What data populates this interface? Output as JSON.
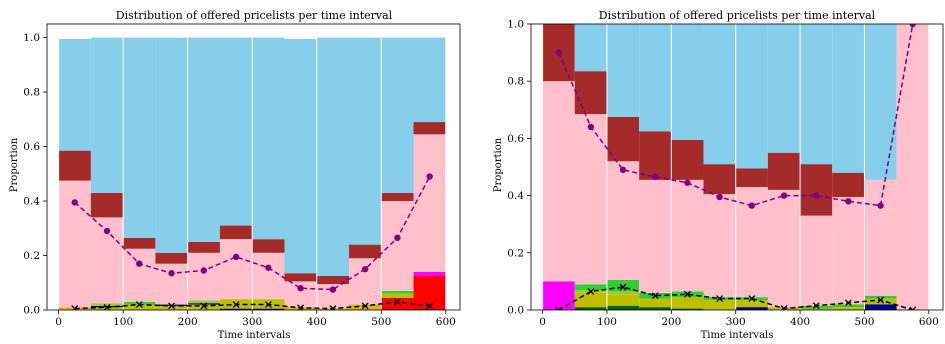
{
  "figure": {
    "background": "#ffffff"
  },
  "colors": {
    "skyblue": "#87ceeb",
    "brown": "#a52a2a",
    "pink": "#ffc0cb",
    "red": "#ff0000",
    "magenta": "#ff00ff",
    "green": "#32cd32",
    "olive": "#bfbf00",
    "yellowgreen": "#9acd32",
    "navy": "#00008b",
    "darkgreen": "#006400",
    "orange": "#ffa500",
    "purple": "#800080",
    "black": "#000000",
    "divider": "#ffffff"
  },
  "chart_data": [
    {
      "type": "bar",
      "subtype": "stacked-histogram-with-line-overlay",
      "title": "Distribution of offered pricelists per time interval",
      "xlabel": "Time intervals",
      "ylabel": "Proportion",
      "xlim": [
        -18,
        622
      ],
      "ylim": [
        0,
        1.05
      ],
      "xticks": [
        0,
        100,
        200,
        300,
        400,
        500,
        600
      ],
      "yticks": [
        0.0,
        0.2,
        0.4,
        0.6,
        0.8,
        1.0
      ],
      "grid": "vertical white lines at x ticks",
      "bin_width": 50,
      "bins": [
        {
          "x0": 0,
          "segments": [
            {
              "c": "orange",
              "v": 0.01
            },
            {
              "c": "pink",
              "v": 0.465
            },
            {
              "c": "brown",
              "v": 0.11
            },
            {
              "c": "skyblue",
              "v": 0.41
            }
          ]
        },
        {
          "x0": 50,
          "segments": [
            {
              "c": "olive",
              "v": 0.01
            },
            {
              "c": "navy",
              "v": 0.005
            },
            {
              "c": "yellowgreen",
              "v": 0.01
            },
            {
              "c": "pink",
              "v": 0.315
            },
            {
              "c": "brown",
              "v": 0.09
            },
            {
              "c": "skyblue",
              "v": 0.57
            }
          ]
        },
        {
          "x0": 100,
          "segments": [
            {
              "c": "olive",
              "v": 0.02
            },
            {
              "c": "green",
              "v": 0.01
            },
            {
              "c": "pink",
              "v": 0.195
            },
            {
              "c": "brown",
              "v": 0.04
            },
            {
              "c": "skyblue",
              "v": 0.735
            }
          ]
        },
        {
          "x0": 150,
          "segments": [
            {
              "c": "olive",
              "v": 0.015
            },
            {
              "c": "navy",
              "v": 0.005
            },
            {
              "c": "pink",
              "v": 0.15
            },
            {
              "c": "brown",
              "v": 0.04
            },
            {
              "c": "skyblue",
              "v": 0.79
            }
          ]
        },
        {
          "x0": 200,
          "segments": [
            {
              "c": "olive",
              "v": 0.02
            },
            {
              "c": "navy",
              "v": 0.005
            },
            {
              "c": "yellowgreen",
              "v": 0.01
            },
            {
              "c": "pink",
              "v": 0.175
            },
            {
              "c": "brown",
              "v": 0.04
            },
            {
              "c": "skyblue",
              "v": 0.75
            }
          ]
        },
        {
          "x0": 250,
          "segments": [
            {
              "c": "navy",
              "v": 0.005
            },
            {
              "c": "olive",
              "v": 0.035
            },
            {
              "c": "pink",
              "v": 0.22
            },
            {
              "c": "brown",
              "v": 0.05
            },
            {
              "c": "skyblue",
              "v": 0.69
            }
          ]
        },
        {
          "x0": 300,
          "segments": [
            {
              "c": "navy",
              "v": 0.005
            },
            {
              "c": "olive",
              "v": 0.035
            },
            {
              "c": "pink",
              "v": 0.17
            },
            {
              "c": "brown",
              "v": 0.05
            },
            {
              "c": "skyblue",
              "v": 0.74
            }
          ]
        },
        {
          "x0": 350,
          "segments": [
            {
              "c": "olive",
              "v": 0.01
            },
            {
              "c": "pink",
              "v": 0.095
            },
            {
              "c": "brown",
              "v": 0.03
            },
            {
              "c": "skyblue",
              "v": 0.86
            }
          ]
        },
        {
          "x0": 400,
          "segments": [
            {
              "c": "olive",
              "v": 0.005
            },
            {
              "c": "pink",
              "v": 0.09
            },
            {
              "c": "brown",
              "v": 0.03
            },
            {
              "c": "skyblue",
              "v": 0.875
            }
          ]
        },
        {
          "x0": 450,
          "segments": [
            {
              "c": "orange",
              "v": 0.01
            },
            {
              "c": "olive",
              "v": 0.01
            },
            {
              "c": "pink",
              "v": 0.17
            },
            {
              "c": "brown",
              "v": 0.05
            },
            {
              "c": "skyblue",
              "v": 0.76
            }
          ]
        },
        {
          "x0": 500,
          "segments": [
            {
              "c": "red",
              "v": 0.045
            },
            {
              "c": "olive",
              "v": 0.015
            },
            {
              "c": "green",
              "v": 0.01
            },
            {
              "c": "pink",
              "v": 0.33
            },
            {
              "c": "brown",
              "v": 0.03
            },
            {
              "c": "skyblue",
              "v": 0.57
            }
          ]
        },
        {
          "x0": 550,
          "segments": [
            {
              "c": "red",
              "v": 0.125
            },
            {
              "c": "magenta",
              "v": 0.015
            },
            {
              "c": "pink",
              "v": 0.505
            },
            {
              "c": "brown",
              "v": 0.045
            },
            {
              "c": "skyblue",
              "v": 0.31
            }
          ]
        }
      ],
      "series": [
        {
          "style": "purple dashed, circle markers",
          "color": "purple",
          "x": [
            25,
            75,
            125,
            175,
            225,
            275,
            325,
            375,
            425,
            475,
            525,
            575
          ],
          "values": [
            0.395,
            0.29,
            0.17,
            0.135,
            0.145,
            0.195,
            0.155,
            0.08,
            0.075,
            0.15,
            0.265,
            0.49
          ]
        },
        {
          "style": "black dashed, x markers",
          "color": "black",
          "x": [
            25,
            75,
            125,
            175,
            225,
            275,
            325,
            375,
            425,
            475,
            525,
            575
          ],
          "values": [
            0.005,
            0.01,
            0.02,
            0.015,
            0.015,
            0.02,
            0.02,
            0.008,
            0.005,
            0.015,
            0.03,
            0.015
          ]
        }
      ]
    },
    {
      "type": "bar",
      "subtype": "stacked-histogram-with-line-overlay",
      "title": "Distribution of offered pricelists per time interval",
      "xlabel": "Time intervals",
      "ylabel": "Proportion",
      "xlim": [
        -18,
        622
      ],
      "ylim": [
        0,
        1.0
      ],
      "xticks": [
        0,
        100,
        200,
        300,
        400,
        500,
        600
      ],
      "yticks": [
        0.0,
        0.2,
        0.4,
        0.6,
        0.8,
        1.0
      ],
      "grid": "vertical white lines at x ticks",
      "bin_width": 50,
      "bins": [
        {
          "x0": 0,
          "segments": [
            {
              "c": "magenta",
              "v": 0.1
            },
            {
              "c": "pink",
              "v": 0.7
            },
            {
              "c": "brown",
              "v": 0.2
            }
          ]
        },
        {
          "x0": 50,
          "segments": [
            {
              "c": "darkgreen",
              "v": 0.01
            },
            {
              "c": "olive",
              "v": 0.05
            },
            {
              "c": "yellowgreen",
              "v": 0.01
            },
            {
              "c": "green",
              "v": 0.02
            },
            {
              "c": "pink",
              "v": 0.595
            },
            {
              "c": "brown",
              "v": 0.15
            },
            {
              "c": "skyblue",
              "v": 0.165
            }
          ]
        },
        {
          "x0": 100,
          "segments": [
            {
              "c": "darkgreen",
              "v": 0.015
            },
            {
              "c": "olive",
              "v": 0.04
            },
            {
              "c": "yellowgreen",
              "v": 0.01
            },
            {
              "c": "green",
              "v": 0.04
            },
            {
              "c": "pink",
              "v": 0.415
            },
            {
              "c": "brown",
              "v": 0.155
            },
            {
              "c": "skyblue",
              "v": 0.325
            }
          ]
        },
        {
          "x0": 150,
          "segments": [
            {
              "c": "darkgreen",
              "v": 0.01
            },
            {
              "c": "olive",
              "v": 0.03
            },
            {
              "c": "green",
              "v": 0.02
            },
            {
              "c": "pink",
              "v": 0.395
            },
            {
              "c": "brown",
              "v": 0.17
            },
            {
              "c": "skyblue",
              "v": 0.375
            }
          ]
        },
        {
          "x0": 200,
          "segments": [
            {
              "c": "darkgreen",
              "v": 0.005
            },
            {
              "c": "olive",
              "v": 0.04
            },
            {
              "c": "green",
              "v": 0.02
            },
            {
              "c": "pink",
              "v": 0.39
            },
            {
              "c": "brown",
              "v": 0.14
            },
            {
              "c": "skyblue",
              "v": 0.405
            }
          ]
        },
        {
          "x0": 250,
          "segments": [
            {
              "c": "olive",
              "v": 0.035
            },
            {
              "c": "green",
              "v": 0.01
            },
            {
              "c": "pink",
              "v": 0.36
            },
            {
              "c": "brown",
              "v": 0.105
            },
            {
              "c": "skyblue",
              "v": 0.49
            }
          ]
        },
        {
          "x0": 300,
          "segments": [
            {
              "c": "navy",
              "v": 0.01
            },
            {
              "c": "olive",
              "v": 0.025
            },
            {
              "c": "green",
              "v": 0.01
            },
            {
              "c": "pink",
              "v": 0.385
            },
            {
              "c": "brown",
              "v": 0.065
            },
            {
              "c": "skyblue",
              "v": 0.505
            }
          ]
        },
        {
          "x0": 350,
          "segments": [
            {
              "c": "olive",
              "v": 0.01
            },
            {
              "c": "pink",
              "v": 0.41
            },
            {
              "c": "brown",
              "v": 0.13
            },
            {
              "c": "skyblue",
              "v": 0.45
            }
          ]
        },
        {
          "x0": 400,
          "segments": [
            {
              "c": "olive",
              "v": 0.005
            },
            {
              "c": "green",
              "v": 0.01
            },
            {
              "c": "pink",
              "v": 0.315
            },
            {
              "c": "brown",
              "v": 0.18
            },
            {
              "c": "skyblue",
              "v": 0.49
            }
          ]
        },
        {
          "x0": 450,
          "segments": [
            {
              "c": "olive",
              "v": 0.01
            },
            {
              "c": "green",
              "v": 0.01
            },
            {
              "c": "pink",
              "v": 0.375
            },
            {
              "c": "brown",
              "v": 0.085
            },
            {
              "c": "skyblue",
              "v": 0.52
            }
          ]
        },
        {
          "x0": 500,
          "segments": [
            {
              "c": "navy",
              "v": 0.02
            },
            {
              "c": "olive",
              "v": 0.02
            },
            {
              "c": "green",
              "v": 0.01
            },
            {
              "c": "pink",
              "v": 0.405
            },
            {
              "c": "skyblue",
              "v": 0.545
            }
          ]
        },
        {
          "x0": 550,
          "segments": [
            {
              "c": "pink",
              "v": 1.0
            }
          ]
        }
      ],
      "series": [
        {
          "style": "purple dashed, circle markers",
          "color": "purple",
          "x": [
            25,
            75,
            125,
            175,
            225,
            275,
            325,
            375,
            425,
            475,
            525,
            575
          ],
          "values": [
            0.9,
            0.64,
            0.49,
            0.465,
            0.445,
            0.395,
            0.365,
            0.4,
            0.4,
            0.38,
            0.365,
            1.0
          ]
        },
        {
          "style": "black dashed, x markers",
          "color": "black",
          "x": [
            25,
            75,
            125,
            175,
            225,
            275,
            325,
            375,
            425,
            475,
            525,
            575
          ],
          "values": [
            0.0,
            0.065,
            0.08,
            0.05,
            0.055,
            0.04,
            0.04,
            0.005,
            0.015,
            0.025,
            0.035,
            0.0
          ]
        }
      ]
    }
  ]
}
